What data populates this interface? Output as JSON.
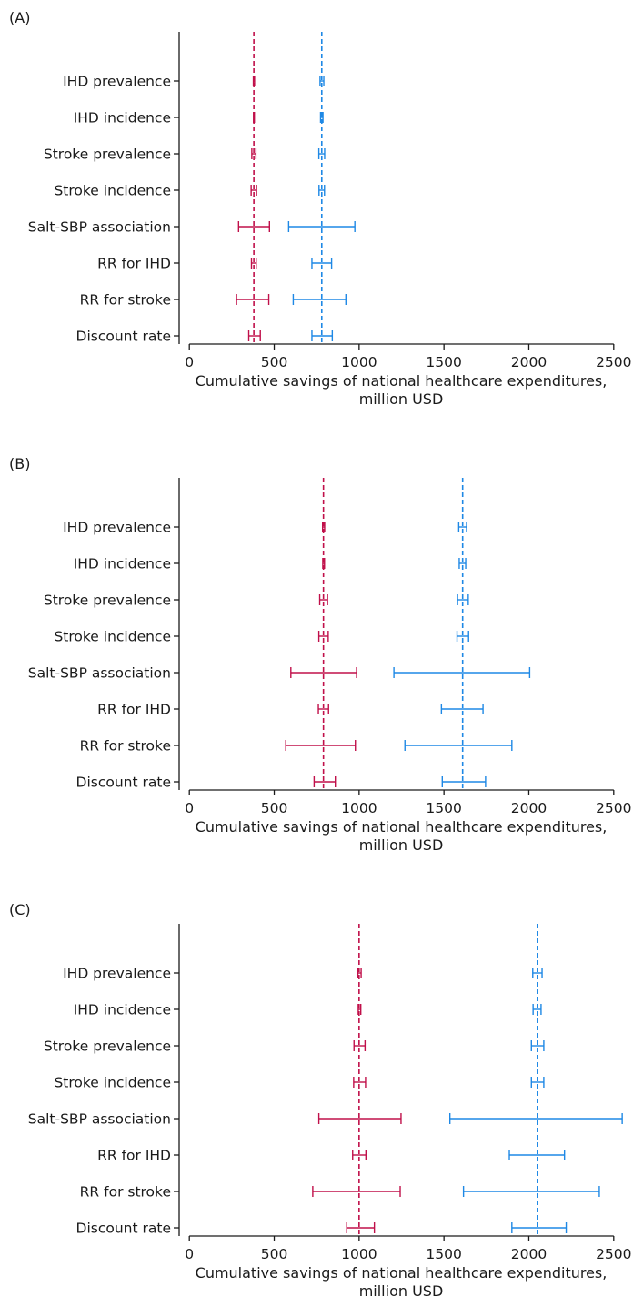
{
  "colors": {
    "series_a": "#c0104a",
    "series_b": "#1e88e5",
    "axis": "#1a1a1a"
  },
  "chart_data": [
    {
      "type": "forest",
      "panel_label": "(A)",
      "xlabel_lines": [
        "Cumulative savings of national healthcare expenditures,",
        "million USD"
      ],
      "xlim": [
        -60,
        2560
      ],
      "xticks": [
        0,
        500,
        1000,
        1500,
        2000,
        2500
      ],
      "categories": [
        "IHD prevalence",
        "IHD incidence",
        "Stroke prevalence",
        "Stroke incidence",
        "Salt-SBP association",
        "RR for IHD",
        "RR for stroke",
        "Discount rate"
      ],
      "series": [
        {
          "color_key": "series_a",
          "reference": 380,
          "intervals": [
            [
              377,
              384
            ],
            [
              378,
              383
            ],
            [
              368,
              392
            ],
            [
              364,
              396
            ],
            [
              290,
              472
            ],
            [
              366,
              394
            ],
            [
              278,
              468
            ],
            [
              350,
              418
            ]
          ]
        },
        {
          "color_key": "series_b",
          "reference": 780,
          "intervals": [
            [
              770,
              792
            ],
            [
              773,
              787
            ],
            [
              763,
              797
            ],
            [
              764,
              796
            ],
            [
              585,
              975
            ],
            [
              722,
              838
            ],
            [
              612,
              922
            ],
            [
              722,
              842
            ]
          ]
        }
      ]
    },
    {
      "type": "forest",
      "panel_label": "(B)",
      "xlabel_lines": [
        "Cumulative savings of national healthcare expenditures,",
        "million USD"
      ],
      "xlim": [
        -60,
        2560
      ],
      "xticks": [
        0,
        500,
        1000,
        1500,
        2000,
        2500
      ],
      "categories": [
        "IHD prevalence",
        "IHD incidence",
        "Stroke prevalence",
        "Stroke incidence",
        "Salt-SBP association",
        "RR for IHD",
        "RR for stroke",
        "Discount rate"
      ],
      "series": [
        {
          "color_key": "series_a",
          "reference": 790,
          "intervals": [
            [
              785,
              797
            ],
            [
              786,
              796
            ],
            [
              768,
              814
            ],
            [
              763,
              818
            ],
            [
              598,
              985
            ],
            [
              760,
              820
            ],
            [
              568,
              978
            ],
            [
              735,
              860
            ]
          ]
        },
        {
          "color_key": "series_b",
          "reference": 1610,
          "intervals": [
            [
              1587,
              1633
            ],
            [
              1590,
              1628
            ],
            [
              1580,
              1643
            ],
            [
              1577,
              1645
            ],
            [
              1205,
              2005
            ],
            [
              1485,
              1730
            ],
            [
              1270,
              1900
            ],
            [
              1490,
              1745
            ]
          ]
        }
      ]
    },
    {
      "type": "forest",
      "panel_label": "(C)",
      "xlabel_lines": [
        "Cumulative savings of national healthcare expenditures,",
        "million USD"
      ],
      "xlim": [
        -60,
        2560
      ],
      "xticks": [
        0,
        500,
        1000,
        1500,
        2000,
        2500
      ],
      "categories": [
        "IHD prevalence",
        "IHD incidence",
        "Stroke prevalence",
        "Stroke incidence",
        "Salt-SBP association",
        "RR for IHD",
        "RR for stroke",
        "Discount rate"
      ],
      "series": [
        {
          "color_key": "series_a",
          "reference": 1000,
          "intervals": [
            [
              993,
              1012
            ],
            [
              995,
              1010
            ],
            [
              970,
              1035
            ],
            [
              968,
              1038
            ],
            [
              763,
              1247
            ],
            [
              962,
              1040
            ],
            [
              727,
              1242
            ],
            [
              927,
              1090
            ]
          ]
        },
        {
          "color_key": "series_b",
          "reference": 2050,
          "intervals": [
            [
              2023,
              2078
            ],
            [
              2025,
              2072
            ],
            [
              2015,
              2088
            ],
            [
              2015,
              2088
            ],
            [
              1535,
              2550
            ],
            [
              1885,
              2210
            ],
            [
              1615,
              2415
            ],
            [
              1900,
              2220
            ]
          ]
        }
      ]
    }
  ]
}
